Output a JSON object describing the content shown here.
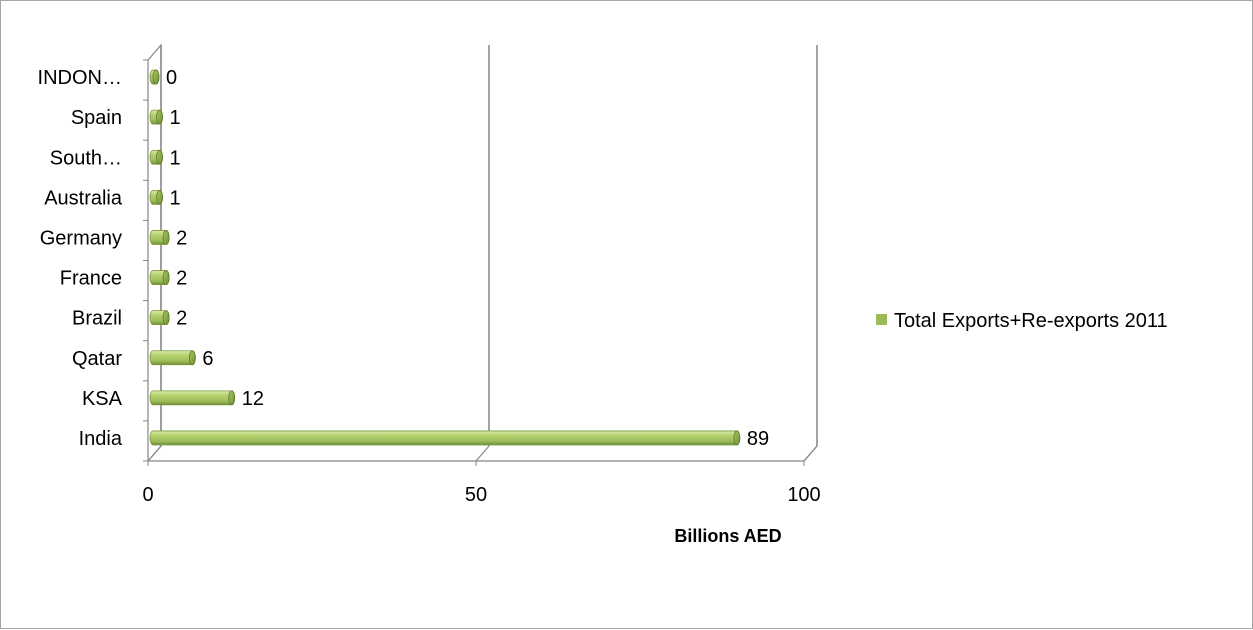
{
  "chart_data": {
    "type": "bar",
    "orientation": "horizontal",
    "style": "3d-cylinder",
    "categories": [
      "INDON…",
      "Spain",
      "South…",
      "Australia",
      "Germany",
      "France",
      "Brazil",
      "Qatar",
      "KSA",
      "India"
    ],
    "series": [
      {
        "name": "Total Exports+Re-exports 2011",
        "values": [
          0,
          1,
          1,
          1,
          2,
          2,
          2,
          6,
          12,
          89
        ],
        "color": "#9bbb59"
      }
    ],
    "data_labels": [
      "0",
      "1",
      "1",
      "1",
      "2",
      "2",
      "2",
      "6",
      "12",
      "89"
    ],
    "xlabel": "Billions AED",
    "ylabel": "",
    "xlim": [
      0,
      100
    ],
    "x_ticks": [
      "0",
      "50",
      "100"
    ],
    "grid": "vertical-major",
    "legend_position": "right"
  }
}
